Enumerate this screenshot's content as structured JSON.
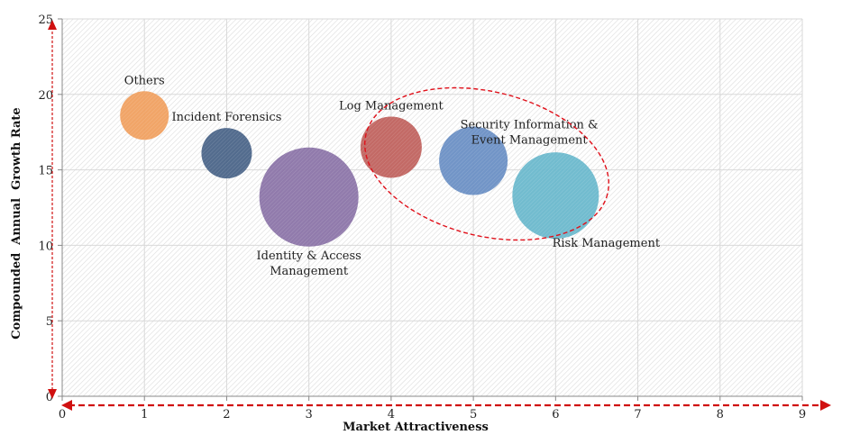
{
  "chart_data": {
    "type": "bubble",
    "title": "",
    "xlabel": "Market Attractiveness",
    "ylabel": "Compounded  Annual  Growth Rate",
    "xlim": [
      0,
      9
    ],
    "ylim": [
      0,
      25
    ],
    "x_ticks": [
      "0",
      "1",
      "2",
      "3",
      "4",
      "5",
      "6",
      "7",
      "8",
      "9"
    ],
    "y_ticks": [
      "0",
      "5",
      "10",
      "15",
      "20",
      "25"
    ],
    "grid": true,
    "legend": "none",
    "series": [
      {
        "name": "Others",
        "label_lines": [
          "Others"
        ],
        "x": 1,
        "y": 18.6,
        "size": 27,
        "color": "#f0a060",
        "label_pos": "above"
      },
      {
        "name": "Incident Forensics",
        "label_lines": [
          "Incident Forensics"
        ],
        "x": 2,
        "y": 16.1,
        "size": 28,
        "color": "#4a6488",
        "label_pos": "above"
      },
      {
        "name": "Identity & Access Management",
        "label_lines": [
          "Identity & Access",
          "Management"
        ],
        "x": 3,
        "y": 13.2,
        "size": 55,
        "color": "#8b74a8",
        "label_pos": "below"
      },
      {
        "name": "Log Management",
        "label_lines": [
          "Log Management"
        ],
        "x": 4,
        "y": 16.5,
        "size": 34,
        "color": "#c0625e",
        "label_pos": "above"
      },
      {
        "name": "Security Information & Event Management",
        "label_lines": [
          "Security Information &",
          "Event Management"
        ],
        "x": 5,
        "y": 15.6,
        "size": 38,
        "color": "#6a8fc4",
        "label_pos": "above-right"
      },
      {
        "name": "Risk Management",
        "label_lines": [
          "Risk Management"
        ],
        "x": 6,
        "y": 13.3,
        "size": 48,
        "color": "#6ab8cc",
        "label_pos": "below-right"
      }
    ],
    "annotations": [
      {
        "type": "dashed-ellipse",
        "color": "#e0101a",
        "encloses": [
          "Log Management",
          "Security Information & Event Management",
          "Risk Management"
        ]
      },
      {
        "type": "dashed-arrow",
        "axis": "x",
        "color": "#d01010",
        "direction": "both"
      },
      {
        "type": "dashed-arrow",
        "axis": "y",
        "color": "#d01010",
        "direction": "both"
      }
    ]
  },
  "colors": {
    "grid": "#d9d9d9",
    "axis": "#888888",
    "arrow": "#d01010",
    "ellipse": "#e0101a"
  }
}
